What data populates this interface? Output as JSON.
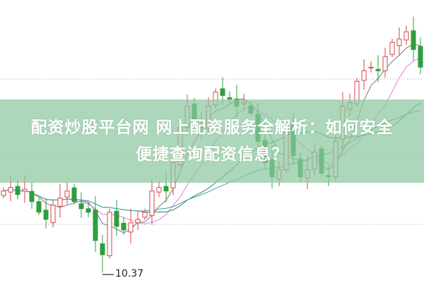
{
  "title_line1": "配资炒股平台网 网上配资服务全解析：如何安全",
  "title_line2": "便捷查询配资信息？",
  "chart_data": {
    "type": "candlestick",
    "closes": [
      11.29,
      11.33,
      11.25,
      11.31,
      11.17,
      11.05,
      10.97,
      11.13,
      11.21,
      11.29,
      11.17,
      11.09,
      11.05,
      10.73,
      10.57,
      11.05,
      10.89,
      10.85,
      10.93,
      10.97,
      11.05,
      11.29,
      11.33,
      11.29,
      11.61,
      12.01,
      12.25,
      12.05,
      12.01,
      12.25,
      12.41,
      12.37,
      12.33,
      12.25,
      12.29,
      12.17,
      11.85,
      11.61,
      11.45,
      11.53,
      12.01,
      11.69,
      11.45,
      11.53,
      11.73,
      11.49,
      11.45,
      11.85,
      12.25,
      12.29,
      12.53,
      12.65,
      12.69,
      12.65,
      12.81,
      12.97,
      13.01,
      13.09,
      12.89,
      12.69
    ],
    "low_annotation": "10.37",
    "low_index": 14,
    "ylim": [
      10.25,
      13.45
    ],
    "moving_averages": [
      5,
      10,
      20,
      30
    ],
    "colors": {
      "up": "#d9434a",
      "down": "#2e9e3e",
      "ma5": "#777777",
      "ma10": "#e27ee0",
      "ma20": "#2f8a47",
      "ma30": "#3aa0b0"
    },
    "grid": "dotted"
  }
}
